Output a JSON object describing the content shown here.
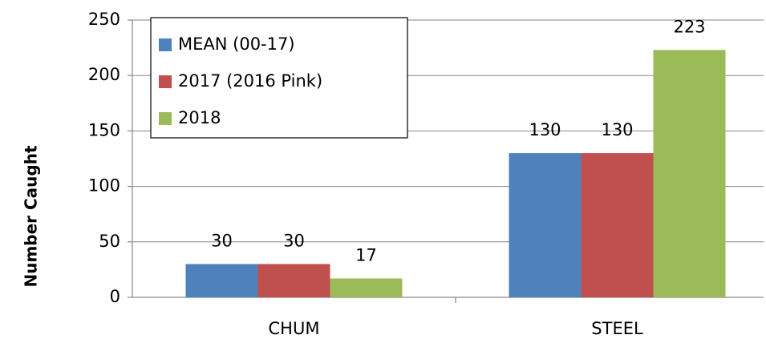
{
  "chart_data": {
    "type": "bar",
    "y_label": "Number Caught",
    "categories": [
      "CHUM",
      "STEEL"
    ],
    "series": [
      {
        "name": "MEAN (00-17)",
        "color": "#4f81bd",
        "values": [
          30,
          130
        ]
      },
      {
        "name": "2017 (2016 Pink)",
        "color": "#c0504d",
        "values": [
          30,
          130
        ]
      },
      {
        "name": "2018",
        "color": "#9bbb59",
        "values": [
          17,
          223
        ]
      }
    ],
    "ylim": [
      0,
      250
    ],
    "yticks": [
      0,
      50,
      100,
      150,
      200,
      250
    ],
    "grid": true,
    "legend": "upper left"
  }
}
